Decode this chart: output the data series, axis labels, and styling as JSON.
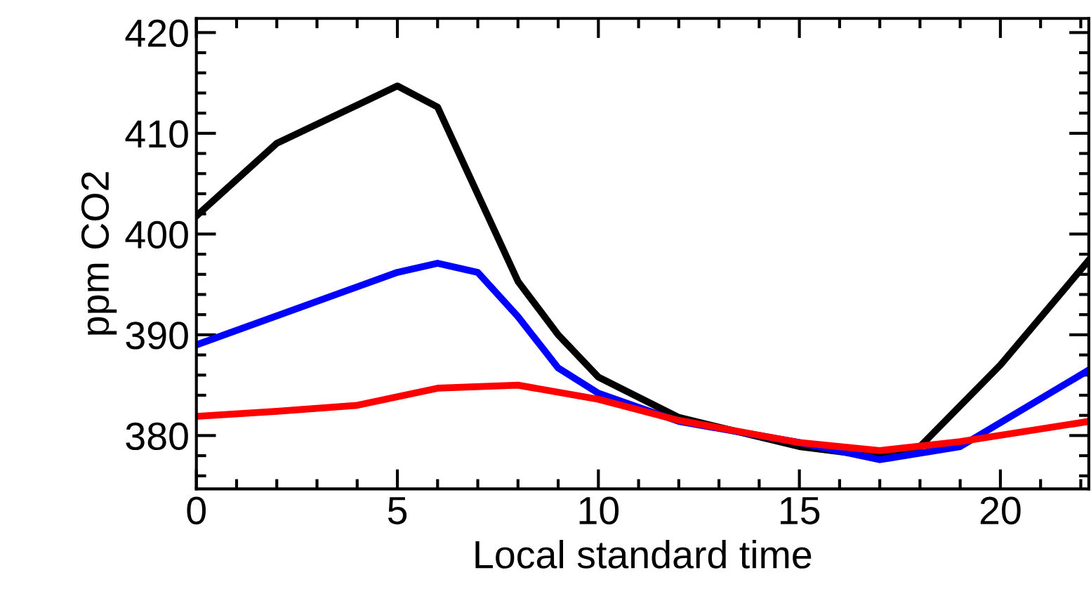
{
  "chart_data": {
    "type": "line",
    "xlabel": "Local standard time",
    "ylabel": "ppm CO2",
    "xlim": [
      0,
      22.2
    ],
    "ylim": [
      374.7,
      421.4
    ],
    "xticks": [
      0,
      5,
      10,
      15,
      20
    ],
    "yticks": [
      380,
      390,
      400,
      410,
      420
    ],
    "grid": false,
    "legend": false,
    "marker": "none",
    "line_style": "solid",
    "series": [
      {
        "color": "#000000",
        "x": [
          0,
          2,
          5,
          6,
          8,
          9,
          10,
          12,
          15,
          17,
          18,
          20,
          22.2
        ],
        "values": [
          401.8,
          409,
          414.7,
          412.6,
          395.3,
          390,
          385.8,
          381.8,
          378.9,
          377.9,
          378.9,
          387,
          397.4
        ]
      },
      {
        "color": "#0000ff",
        "x": [
          0,
          5,
          6,
          7,
          8,
          9,
          10,
          12,
          15,
          17,
          19,
          22.2
        ],
        "values": [
          389,
          396.2,
          397.1,
          396.2,
          391.8,
          386.7,
          384.2,
          381.4,
          379.3,
          377.6,
          378.9,
          386.5
        ]
      },
      {
        "color": "#ff0000",
        "x": [
          0,
          2,
          4,
          6,
          8,
          10,
          12,
          15,
          17,
          19,
          22.2
        ],
        "values": [
          381.9,
          382.4,
          383,
          384.7,
          385,
          383.6,
          381.5,
          379.3,
          378.5,
          379.4,
          381.4
        ]
      }
    ]
  }
}
